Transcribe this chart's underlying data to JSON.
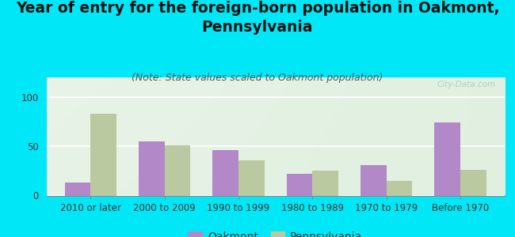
{
  "title": "Year of entry for the foreign-born population in Oakmont,\nPennsylvania",
  "subtitle": "(Note: State values scaled to Oakmont population)",
  "categories": [
    "2010 or later",
    "2000 to 2009",
    "1990 to 1999",
    "1980 to 1989",
    "1970 to 1979",
    "Before 1970"
  ],
  "oakmont_values": [
    13,
    55,
    46,
    22,
    31,
    74
  ],
  "pennsylvania_values": [
    83,
    51,
    36,
    25,
    15,
    26
  ],
  "oakmont_color": "#b388c8",
  "pennsylvania_color": "#bbc9a0",
  "background_outer": "#00e8f8",
  "ylim": [
    0,
    120
  ],
  "yticks": [
    0,
    50,
    100
  ],
  "bar_width": 0.35,
  "title_fontsize": 13.5,
  "subtitle_fontsize": 9,
  "tick_fontsize": 8.5,
  "legend_fontsize": 10,
  "watermark": "City-Data.com"
}
